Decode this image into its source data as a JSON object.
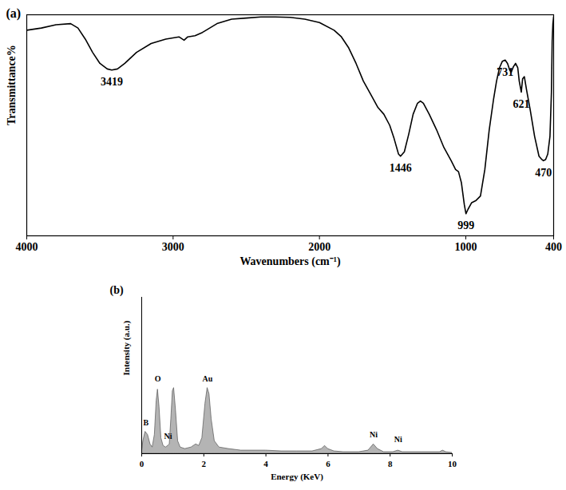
{
  "chart_data": [
    {
      "type": "line",
      "title": "(a)",
      "x_label": "Wavenumbers (cm⁻¹)",
      "y_label": "Transmittance%",
      "color": "#000000",
      "x": [
        4000,
        3900,
        3800,
        3700,
        3650,
        3600,
        3550,
        3500,
        3450,
        3419,
        3380,
        3330,
        3250,
        3150,
        3050,
        2960,
        2925,
        2900,
        2850,
        2800,
        2700,
        2600,
        2500,
        2400,
        2300,
        2200,
        2100,
        2000,
        1900,
        1850,
        1800,
        1750,
        1700,
        1650,
        1600,
        1560,
        1520,
        1490,
        1460,
        1446,
        1420,
        1390,
        1360,
        1330,
        1310,
        1290,
        1250,
        1200,
        1150,
        1100,
        1070,
        1050,
        1030,
        1010,
        999,
        985,
        960,
        930,
        900,
        870,
        840,
        810,
        790,
        770,
        750,
        731,
        715,
        700,
        690,
        675,
        660,
        645,
        635,
        621,
        612,
        600,
        585,
        560,
        530,
        500,
        480,
        470,
        455,
        440,
        425,
        415,
        410,
        405,
        400
      ],
      "values": [
        93,
        94,
        95.5,
        96,
        94,
        89,
        83,
        78,
        75.5,
        75,
        75.5,
        78,
        83,
        87,
        89,
        90,
        88.5,
        90,
        90.5,
        92,
        96,
        98,
        98.5,
        99,
        99,
        98.8,
        98,
        96.5,
        93,
        90,
        85,
        78,
        70,
        64,
        58,
        55,
        50,
        44,
        37,
        36,
        38,
        46,
        55,
        60,
        61,
        60,
        55,
        48,
        40,
        34,
        30,
        29,
        24,
        14,
        10,
        12,
        15,
        16,
        18,
        30,
        48,
        62,
        70,
        76,
        79,
        79.5,
        78,
        75,
        74,
        76.5,
        78,
        76,
        70,
        65,
        71,
        72,
        66,
        57,
        45,
        36,
        34.5,
        34,
        34.5,
        37,
        45,
        65,
        88,
        96,
        99
      ],
      "xlim": [
        4000,
        400
      ],
      "xticks": [
        4000,
        3000,
        2000,
        1000,
        400
      ],
      "ylim": [
        0,
        100
      ],
      "tick_labels": "x",
      "peak_labels": [
        3419,
        1446,
        999,
        731,
        621,
        470
      ]
    },
    {
      "type": "area",
      "title": "(b)",
      "x_label": "Energy (KeV)",
      "y_label": "Intensity (a.u.)",
      "color": "#b4b4b4",
      "x": [
        0,
        0.05,
        0.12,
        0.2,
        0.28,
        0.35,
        0.42,
        0.48,
        0.52,
        0.57,
        0.63,
        0.7,
        0.78,
        0.85,
        0.9,
        0.95,
        1.0,
        1.04,
        1.1,
        1.17,
        1.25,
        1.4,
        1.6,
        1.75,
        1.85,
        1.95,
        2.05,
        2.12,
        2.18,
        2.25,
        2.35,
        2.5,
        2.8,
        3.2,
        3.6,
        4,
        4.5,
        5,
        5.5,
        5.8,
        5.9,
        6.0,
        6.2,
        6.5,
        7,
        7.3,
        7.47,
        7.6,
        7.8,
        8.1,
        8.26,
        8.4,
        9,
        9.6,
        9.7,
        9.8,
        10
      ],
      "values": [
        0,
        8,
        14,
        12,
        6,
        4,
        12,
        34,
        41,
        30,
        10,
        5,
        4,
        5,
        6,
        22,
        40,
        42,
        28,
        8,
        4,
        3,
        4,
        6,
        5,
        10,
        32,
        42,
        38,
        22,
        8,
        4,
        3,
        2,
        2,
        2,
        1.5,
        1.5,
        1.5,
        3,
        5,
        3,
        1.5,
        1,
        1,
        2,
        6,
        3,
        1,
        1,
        2,
        1,
        1,
        1,
        2,
        1,
        0.5
      ],
      "xlim": [
        0,
        10
      ],
      "xticks": [
        0,
        2,
        4,
        6,
        8,
        10
      ],
      "ylim": [
        0,
        100
      ],
      "tick_labels": "x",
      "annotations": [
        {
          "label": "B",
          "x": 0.14,
          "y": 20
        },
        {
          "label": "O",
          "x": 0.52,
          "y": 48
        },
        {
          "label": "Ni",
          "x": 0.85,
          "y": 11
        },
        {
          "label": "Au",
          "x": 2.12,
          "y": 48
        },
        {
          "label": "Ni",
          "x": 7.47,
          "y": 12
        },
        {
          "label": "Ni",
          "x": 8.26,
          "y": 9
        }
      ]
    }
  ]
}
